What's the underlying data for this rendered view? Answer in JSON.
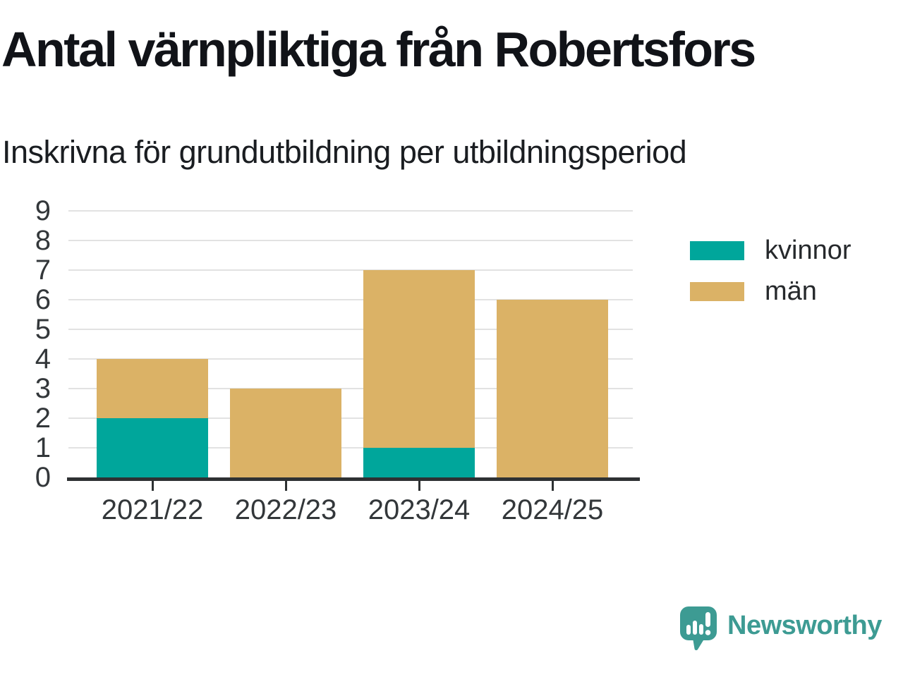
{
  "title": "Antal värnpliktiga från Robertsfors",
  "subtitle": "Inskrivna för grundutbildning per utbildningsperiod",
  "chart_data": {
    "type": "bar",
    "stacked": true,
    "title": "Antal värnpliktiga från Robertsfors",
    "subtitle": "Inskrivna för grundutbildning per utbildningsperiod",
    "categories": [
      "2021/22",
      "2022/23",
      "2023/24",
      "2024/25"
    ],
    "series": [
      {
        "name": "kvinnor",
        "color": "#00a69b",
        "values": [
          2,
          0,
          1,
          0
        ]
      },
      {
        "name": "män",
        "color": "#dbb266",
        "values": [
          2,
          3,
          6,
          6
        ]
      }
    ],
    "totals": [
      4,
      3,
      7,
      6
    ],
    "ylim": [
      0,
      9
    ],
    "yticks": [
      0,
      1,
      2,
      3,
      4,
      5,
      6,
      7,
      8,
      9
    ],
    "xlabel": "",
    "ylabel": "",
    "grid": true,
    "legend_position": "right"
  },
  "branding": {
    "logo_text": "Newsworthy",
    "logo_color": "#3d9b93",
    "logo_icon": "newsworthy-speech-bubble-bar-chart-icon"
  }
}
